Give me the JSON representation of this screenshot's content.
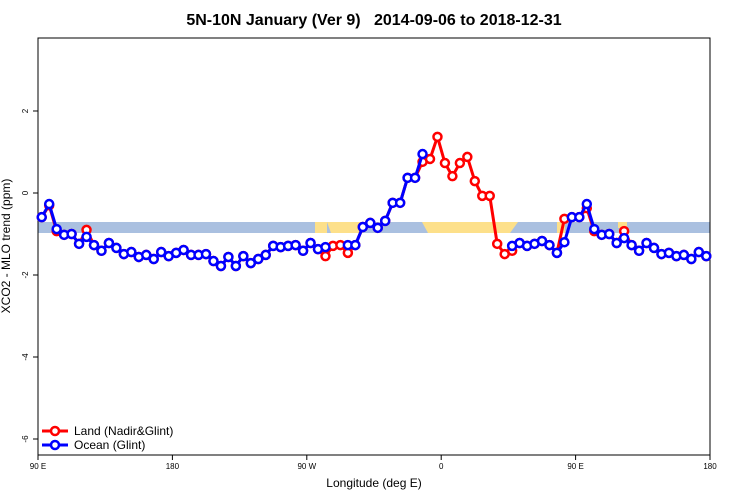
{
  "chart_data": {
    "type": "line",
    "title": "5N-10N January (Ver 9)   2014-09-06 to 2018-12-31",
    "xlabel": "Longitude (deg E)",
    "ylabel": "XCO2 - MLO trend (ppm)",
    "x": [
      92.5,
      97.5,
      102.5,
      107.5,
      112.5,
      117.5,
      122.5,
      127.5,
      132.5,
      137.5,
      142.5,
      147.5,
      152.5,
      157.5,
      162.5,
      167.5,
      172.5,
      177.5,
      182.5,
      187.5,
      192.5,
      197.5,
      202.5,
      207.5,
      212.5,
      217.5,
      222.5,
      227.5,
      232.5,
      237.5,
      242.5,
      247.5,
      252.5,
      257.5,
      262.5,
      267.5,
      272.5,
      277.5,
      282.5,
      287.5,
      292.5,
      297.5,
      302.5,
      307.5,
      312.5,
      317.5,
      322.5,
      327.5,
      332.5,
      337.5,
      342.5,
      347.5,
      352.5,
      357.5,
      362.5,
      367.5,
      372.5,
      377.5,
      382.5,
      387.5,
      392.5,
      397.5,
      402.5,
      407.5,
      412.5,
      417.5,
      422.5,
      427.5,
      432.5,
      437.5,
      442.5,
      447.5,
      452.5,
      457.5,
      462.5,
      467.5,
      472.5,
      477.5,
      482.5,
      487.5,
      492.5,
      497.5,
      502.5,
      507.5,
      512.5,
      517.5,
      522.5,
      527.5,
      532.5,
      537.5
    ],
    "series": [
      {
        "name": "Land (Nadir&Glint)",
        "color": "#ff0000",
        "values": [
          -0.59,
          -0.3,
          -0.93,
          -1.02,
          -1.0,
          -1.24,
          -0.9,
          -1.27,
          -1.41,
          -1.22,
          -1.34,
          -1.49,
          -1.44,
          -1.56,
          -1.51,
          -1.61,
          -1.44,
          -1.54,
          -1.46,
          -1.39,
          -1.51,
          -1.51,
          -1.49,
          -1.66,
          -1.78,
          -1.56,
          -1.78,
          -1.54,
          -1.71,
          -1.61,
          -1.51,
          -1.29,
          -1.32,
          -1.29,
          -1.27,
          -1.41,
          -1.22,
          -1.37,
          -1.54,
          -1.29,
          -1.27,
          -1.46,
          -1.27,
          -0.83,
          -0.73,
          -0.85,
          -0.68,
          -0.24,
          -0.24,
          0.37,
          0.37,
          0.76,
          0.83,
          1.37,
          0.73,
          0.41,
          0.73,
          0.88,
          0.29,
          -0.07,
          -0.07,
          -1.24,
          -1.49,
          -1.41,
          -1.22,
          -1.29,
          -1.24,
          -1.17,
          -1.27,
          -1.46,
          -0.63,
          -0.59,
          -0.59,
          -0.37,
          -0.93,
          -1.02,
          -1.0,
          -1.22,
          -0.93,
          -1.27,
          -1.41,
          -1.22,
          -1.34,
          -1.49,
          -1.46,
          -1.54,
          -1.51,
          -1.61,
          -1.44,
          -1.54
        ]
      },
      {
        "name": "Ocean (Glint)",
        "color": "#0000ff",
        "values": [
          -0.59,
          -0.27,
          -0.88,
          -1.02,
          -1.0,
          -1.24,
          -1.07,
          -1.27,
          -1.41,
          -1.22,
          -1.34,
          -1.49,
          -1.44,
          -1.56,
          -1.51,
          -1.61,
          -1.44,
          -1.54,
          -1.46,
          -1.39,
          -1.51,
          -1.51,
          -1.49,
          -1.66,
          -1.78,
          -1.56,
          -1.78,
          -1.54,
          -1.71,
          -1.61,
          -1.51,
          -1.29,
          -1.32,
          -1.29,
          -1.27,
          -1.41,
          -1.22,
          -1.37,
          -1.32,
          null,
          null,
          -1.27,
          -1.27,
          -0.83,
          -0.73,
          -0.85,
          -0.68,
          -0.24,
          -0.24,
          0.37,
          0.37,
          0.95,
          null,
          null,
          null,
          null,
          null,
          null,
          null,
          null,
          null,
          null,
          null,
          -1.29,
          -1.22,
          -1.29,
          -1.24,
          -1.17,
          -1.27,
          -1.46,
          -1.2,
          -0.59,
          -0.59,
          -0.27,
          -0.88,
          -1.02,
          -1.0,
          -1.22,
          -1.1,
          -1.27,
          -1.41,
          -1.22,
          -1.34,
          -1.49,
          -1.46,
          -1.54,
          -1.51,
          -1.61,
          -1.44,
          -1.54
        ]
      }
    ],
    "xlim": [
      90,
      540
    ],
    "xticks": [
      {
        "value": 90,
        "label": "90 E"
      },
      180,
      {
        "value": 270,
        "label": "90 W"
      },
      {
        "value": 360,
        "label": "0"
      },
      {
        "value": 450,
        "label": "90 E"
      },
      {
        "value": 540,
        "label": "180"
      }
    ],
    "ylim": [
      -6.39,
      3.78
    ],
    "yticks": [
      -6,
      -4,
      -2,
      0,
      2
    ],
    "legend": "bottom-left"
  }
}
